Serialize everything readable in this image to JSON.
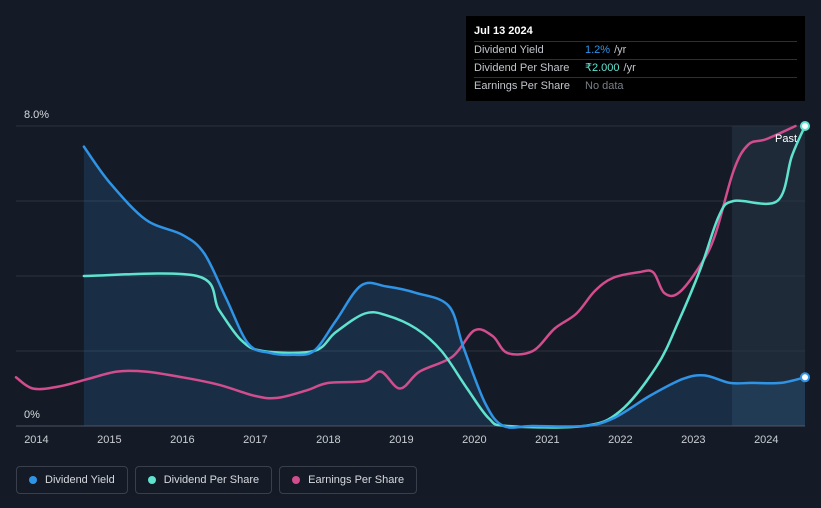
{
  "tooltip": {
    "date": "Jul 13 2024",
    "rows": [
      {
        "label": "Dividend Yield",
        "value": "1.2%",
        "unit": "/yr"
      },
      {
        "label": "Dividend Per Share",
        "value": "₹2.000",
        "unit": "/yr"
      },
      {
        "label": "Earnings Per Share",
        "value": "No data",
        "unit": ""
      }
    ]
  },
  "legend": [
    {
      "label": "Dividend Yield",
      "color": "#2f94e6"
    },
    {
      "label": "Dividend Per Share",
      "color": "#5fe3cf"
    },
    {
      "label": "Earnings Per Share",
      "color": "#d14d8e"
    }
  ],
  "chart_data": {
    "type": "line",
    "y_tick_labels": [
      "8.0%",
      "0%"
    ],
    "ylim": [
      0,
      8
    ],
    "xlim": [
      2013.72,
      2024.53
    ],
    "x_ticks": [
      2014,
      2015,
      2016,
      2017,
      2018,
      2019,
      2020,
      2021,
      2022,
      2023,
      2024
    ],
    "past_label": "Past",
    "past_region_start": 2023.53,
    "series": [
      {
        "name": "Dividend Yield",
        "color": "#2f94e6",
        "filled": true,
        "points": [
          [
            2014.65,
            7.45
          ],
          [
            2015.0,
            6.5
          ],
          [
            2015.5,
            5.5
          ],
          [
            2016.0,
            5.1
          ],
          [
            2016.3,
            4.6
          ],
          [
            2016.6,
            3.4
          ],
          [
            2016.9,
            2.2
          ],
          [
            2017.2,
            1.95
          ],
          [
            2017.5,
            1.9
          ],
          [
            2017.8,
            2.0
          ],
          [
            2018.1,
            2.8
          ],
          [
            2018.45,
            3.75
          ],
          [
            2018.8,
            3.72
          ],
          [
            2019.2,
            3.55
          ],
          [
            2019.65,
            3.2
          ],
          [
            2019.85,
            2.1
          ],
          [
            2020.15,
            0.6
          ],
          [
            2020.4,
            0.0
          ],
          [
            2020.8,
            0.0
          ],
          [
            2021.5,
            0.0
          ],
          [
            2021.9,
            0.2
          ],
          [
            2022.4,
            0.8
          ],
          [
            2022.85,
            1.25
          ],
          [
            2023.15,
            1.35
          ],
          [
            2023.5,
            1.15
          ],
          [
            2023.8,
            1.15
          ],
          [
            2024.2,
            1.15
          ],
          [
            2024.53,
            1.3
          ]
        ]
      },
      {
        "name": "Dividend Per Share",
        "color": "#5fe3cf",
        "filled": false,
        "points": [
          [
            2014.65,
            4.0
          ],
          [
            2016.2,
            4.0
          ],
          [
            2016.5,
            3.1
          ],
          [
            2016.8,
            2.3
          ],
          [
            2017.1,
            2.0
          ],
          [
            2017.8,
            2.0
          ],
          [
            2018.1,
            2.5
          ],
          [
            2018.5,
            3.0
          ],
          [
            2018.8,
            2.95
          ],
          [
            2019.2,
            2.6
          ],
          [
            2019.55,
            2.0
          ],
          [
            2019.9,
            1.0
          ],
          [
            2020.2,
            0.2
          ],
          [
            2020.45,
            0.0
          ],
          [
            2021.5,
            0.0
          ],
          [
            2022.0,
            0.4
          ],
          [
            2022.5,
            1.6
          ],
          [
            2022.8,
            2.8
          ],
          [
            2023.1,
            4.2
          ],
          [
            2023.35,
            5.6
          ],
          [
            2023.55,
            6.0
          ],
          [
            2024.15,
            6.0
          ],
          [
            2024.35,
            7.2
          ],
          [
            2024.53,
            8.0
          ]
        ]
      },
      {
        "name": "Earnings Per Share",
        "color": "#d14d8e",
        "filled": false,
        "points": [
          [
            2013.72,
            1.3
          ],
          [
            2013.95,
            1.0
          ],
          [
            2014.3,
            1.05
          ],
          [
            2014.7,
            1.25
          ],
          [
            2015.1,
            1.45
          ],
          [
            2015.5,
            1.45
          ],
          [
            2016.0,
            1.3
          ],
          [
            2016.5,
            1.1
          ],
          [
            2017.0,
            0.8
          ],
          [
            2017.3,
            0.75
          ],
          [
            2017.7,
            0.95
          ],
          [
            2018.0,
            1.15
          ],
          [
            2018.5,
            1.2
          ],
          [
            2018.72,
            1.45
          ],
          [
            2018.98,
            1.0
          ],
          [
            2019.25,
            1.45
          ],
          [
            2019.7,
            1.85
          ],
          [
            2020.0,
            2.55
          ],
          [
            2020.25,
            2.4
          ],
          [
            2020.45,
            1.95
          ],
          [
            2020.8,
            2.0
          ],
          [
            2021.1,
            2.6
          ],
          [
            2021.4,
            3.0
          ],
          [
            2021.65,
            3.6
          ],
          [
            2021.9,
            3.95
          ],
          [
            2022.25,
            4.1
          ],
          [
            2022.45,
            4.1
          ],
          [
            2022.6,
            3.55
          ],
          [
            2022.8,
            3.55
          ],
          [
            2023.1,
            4.3
          ],
          [
            2023.3,
            5.1
          ],
          [
            2023.55,
            6.8
          ],
          [
            2023.75,
            7.5
          ],
          [
            2024.0,
            7.65
          ],
          [
            2024.4,
            8.0
          ]
        ]
      }
    ],
    "end_markers": [
      "Dividend Yield",
      "Dividend Per Share"
    ]
  }
}
